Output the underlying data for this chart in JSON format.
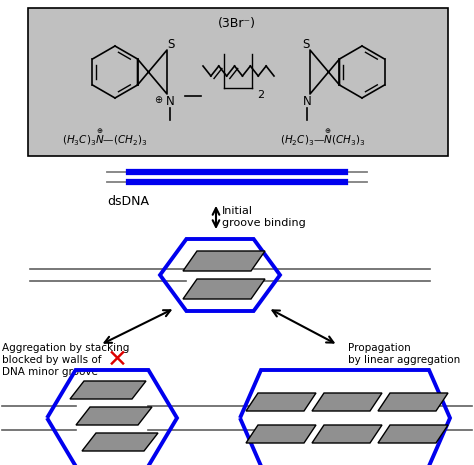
{
  "bg_color": "#ffffff",
  "chem_box_bg": "#c0c0c0",
  "blue_color": "#0000ee",
  "gray_color": "#909090",
  "red_color": "#dd0000",
  "black": "#000000",
  "dna_label": "dsDNA",
  "arrow_label1": "Initial",
  "arrow_label2": "groove binding",
  "left_label1": "Aggregation by stacking",
  "left_label2": "blocked by walls of",
  "left_label3": "DNA minor groove",
  "right_label1": "Propagation",
  "right_label2": "by linear aggregation",
  "chem_label": "(3Br⁻)"
}
